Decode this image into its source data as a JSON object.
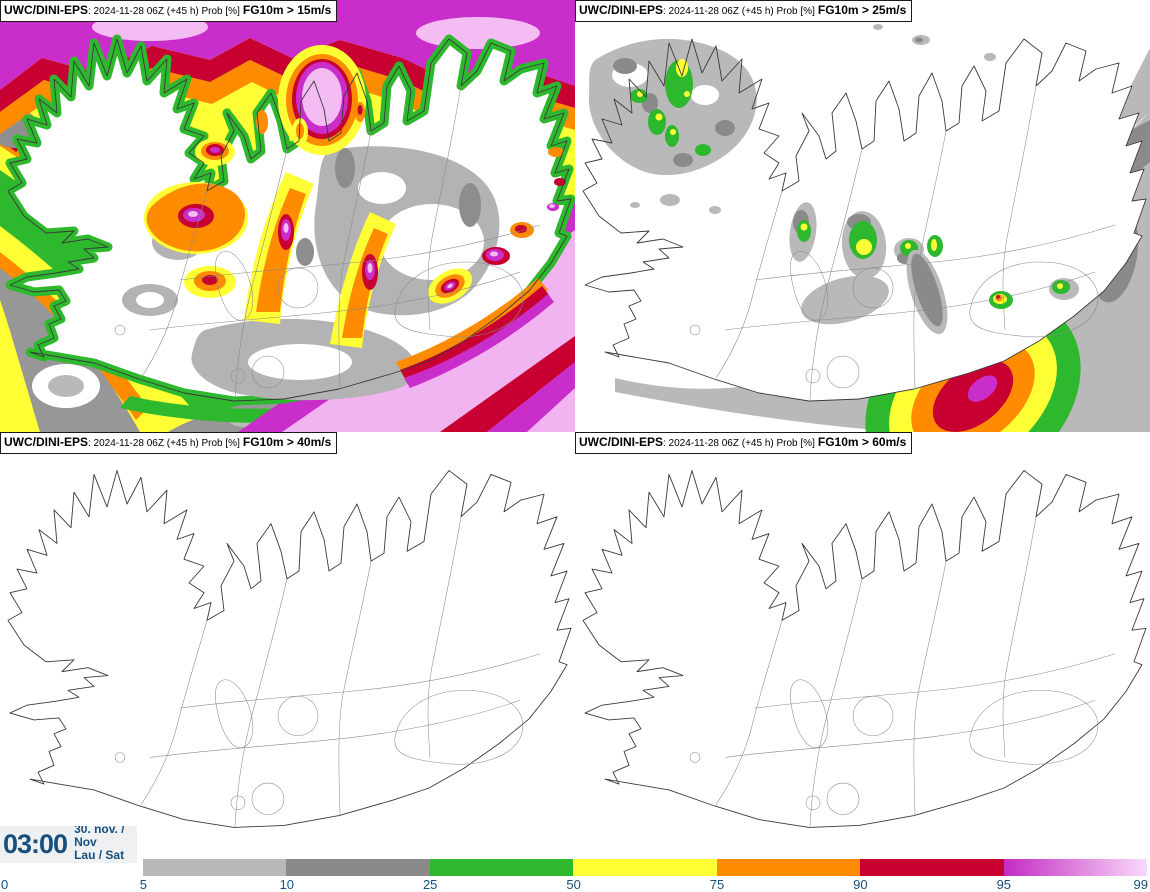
{
  "panels": [
    {
      "model": "UWC/DINI-EPS",
      "details": ": 2024-11-28 06Z (+45 h) Prob [%]",
      "threshold": "FG10m > 15m/s"
    },
    {
      "model": "UWC/DINI-EPS",
      "details": ": 2024-11-28 06Z (+45 h) Prob [%]",
      "threshold": "FG10m > 25m/s"
    },
    {
      "model": "UWC/DINI-EPS",
      "details": ": 2024-11-28 06Z (+45 h) Prob [%]",
      "threshold": "FG10m > 40m/s"
    },
    {
      "model": "UWC/DINI-EPS",
      "details": ": 2024-11-28 06Z (+45 h) Prob [%]",
      "threshold": "FG10m > 60m/s"
    }
  ],
  "time_block": {
    "time": "03:00",
    "date_line1": "30. nóv. /",
    "date_line2": "Nov",
    "date_line3": "Lau / Sat"
  },
  "colorbar": {
    "tick_labels": [
      "0",
      "5",
      "10",
      "25",
      "50",
      "75",
      "90",
      "95",
      "99"
    ],
    "segments": [
      {
        "from": "5",
        "to": "10",
        "color": "#b9b9b9"
      },
      {
        "from": "10",
        "to": "25",
        "color": "#8a8a8a"
      },
      {
        "from": "25",
        "to": "50",
        "color": "#2eb82e"
      },
      {
        "from": "50",
        "to": "75",
        "color": "#ffff35"
      },
      {
        "from": "75",
        "to": "90",
        "color": "#ff8c00"
      },
      {
        "from": "90",
        "to": "95",
        "color": "#c80032"
      },
      {
        "from": "95",
        "to": "99",
        "gradient": true,
        "color_start": "#c32cc3",
        "color_end": "#f9d9f9"
      }
    ],
    "label_color": "#17507e"
  }
}
